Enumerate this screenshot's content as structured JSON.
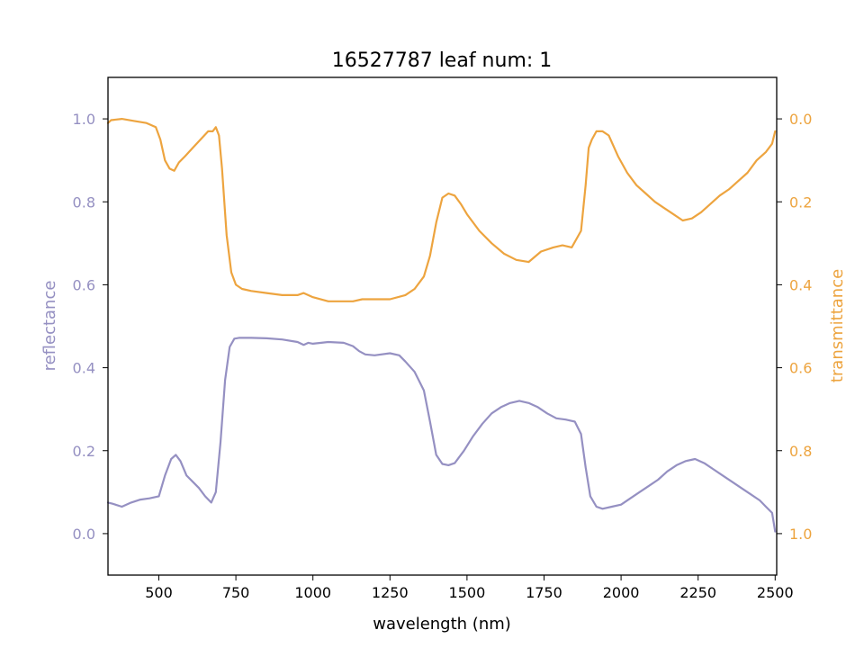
{
  "chart_data": {
    "type": "line",
    "title": "16527787 leaf num: 1",
    "xlabel": "wavelength (nm)",
    "x_ticks": [
      500,
      750,
      1000,
      1250,
      1500,
      1750,
      2000,
      2250,
      2500
    ],
    "xlim": [
      335,
      2505
    ],
    "left_axis": {
      "label": "reflectance",
      "color": "#9590c2",
      "ylim": [
        -0.1,
        1.1
      ],
      "ticks": [
        0.0,
        0.2,
        0.4,
        0.6,
        0.8,
        1.0
      ],
      "tick_labels": [
        "0.0",
        "0.2",
        "0.4",
        "0.6",
        "0.8",
        "1.0"
      ]
    },
    "right_axis": {
      "label": "transmittance",
      "color": "#eda43f",
      "ylim": [
        1.1,
        -0.1
      ],
      "inverted": true,
      "ticks": [
        0.0,
        0.2,
        0.4,
        0.6,
        0.8,
        1.0
      ],
      "tick_labels": [
        "0.0",
        "0.2",
        "0.4",
        "0.6",
        "0.8",
        "1.0"
      ]
    },
    "series": [
      {
        "name": "reflectance",
        "axis": "left",
        "color": "#9590c2",
        "x": [
          335,
          350,
          380,
          410,
          440,
          470,
          500,
          520,
          540,
          555,
          570,
          590,
          610,
          630,
          650,
          670,
          685,
          700,
          715,
          730,
          745,
          760,
          800,
          850,
          900,
          950,
          970,
          985,
          1000,
          1050,
          1100,
          1130,
          1150,
          1170,
          1200,
          1250,
          1280,
          1300,
          1330,
          1360,
          1380,
          1400,
          1420,
          1440,
          1460,
          1490,
          1520,
          1550,
          1580,
          1610,
          1640,
          1670,
          1700,
          1730,
          1760,
          1790,
          1820,
          1850,
          1870,
          1885,
          1900,
          1920,
          1940,
          1970,
          2000,
          2030,
          2060,
          2090,
          2120,
          2150,
          2180,
          2210,
          2240,
          2270,
          2300,
          2330,
          2360,
          2390,
          2420,
          2450,
          2470,
          2490,
          2500
        ],
        "y": [
          0.075,
          0.072,
          0.065,
          0.075,
          0.082,
          0.085,
          0.09,
          0.14,
          0.18,
          0.19,
          0.175,
          0.14,
          0.125,
          0.11,
          0.09,
          0.075,
          0.1,
          0.22,
          0.37,
          0.45,
          0.47,
          0.472,
          0.472,
          0.471,
          0.468,
          0.462,
          0.455,
          0.46,
          0.458,
          0.462,
          0.46,
          0.452,
          0.44,
          0.432,
          0.43,
          0.435,
          0.43,
          0.415,
          0.39,
          0.345,
          0.27,
          0.19,
          0.168,
          0.165,
          0.17,
          0.2,
          0.235,
          0.265,
          0.29,
          0.305,
          0.315,
          0.32,
          0.315,
          0.305,
          0.29,
          0.278,
          0.275,
          0.27,
          0.24,
          0.16,
          0.09,
          0.065,
          0.06,
          0.065,
          0.07,
          0.085,
          0.1,
          0.115,
          0.13,
          0.15,
          0.165,
          0.175,
          0.18,
          0.17,
          0.155,
          0.14,
          0.125,
          0.11,
          0.095,
          0.08,
          0.065,
          0.05,
          0.005
        ]
      },
      {
        "name": "transmittance",
        "axis": "right",
        "color": "#eda43f",
        "x": [
          335,
          345,
          380,
          420,
          460,
          490,
          505,
          520,
          535,
          550,
          565,
          585,
          610,
          635,
          660,
          675,
          685,
          695,
          705,
          720,
          735,
          750,
          770,
          800,
          850,
          900,
          950,
          970,
          1000,
          1050,
          1100,
          1130,
          1160,
          1200,
          1250,
          1300,
          1330,
          1360,
          1380,
          1400,
          1420,
          1440,
          1460,
          1480,
          1500,
          1540,
          1580,
          1620,
          1660,
          1700,
          1740,
          1780,
          1810,
          1840,
          1870,
          1885,
          1895,
          1905,
          1920,
          1940,
          1960,
          1990,
          2020,
          2050,
          2080,
          2110,
          2140,
          2170,
          2200,
          2230,
          2260,
          2290,
          2320,
          2350,
          2380,
          2410,
          2440,
          2470,
          2490,
          2500
        ],
        "y": [
          0.01,
          0.003,
          0.0,
          0.005,
          0.01,
          0.02,
          0.05,
          0.1,
          0.12,
          0.125,
          0.105,
          0.09,
          0.07,
          0.05,
          0.03,
          0.03,
          0.02,
          0.04,
          0.12,
          0.28,
          0.37,
          0.4,
          0.41,
          0.415,
          0.42,
          0.425,
          0.425,
          0.42,
          0.43,
          0.44,
          0.44,
          0.44,
          0.435,
          0.435,
          0.435,
          0.425,
          0.41,
          0.38,
          0.33,
          0.25,
          0.19,
          0.18,
          0.185,
          0.205,
          0.23,
          0.27,
          0.3,
          0.325,
          0.34,
          0.345,
          0.32,
          0.31,
          0.305,
          0.31,
          0.27,
          0.16,
          0.07,
          0.05,
          0.03,
          0.03,
          0.04,
          0.09,
          0.13,
          0.16,
          0.18,
          0.2,
          0.215,
          0.23,
          0.245,
          0.24,
          0.225,
          0.205,
          0.185,
          0.17,
          0.15,
          0.13,
          0.1,
          0.08,
          0.06,
          0.03
        ]
      }
    ],
    "grid": false,
    "legend": "none"
  }
}
